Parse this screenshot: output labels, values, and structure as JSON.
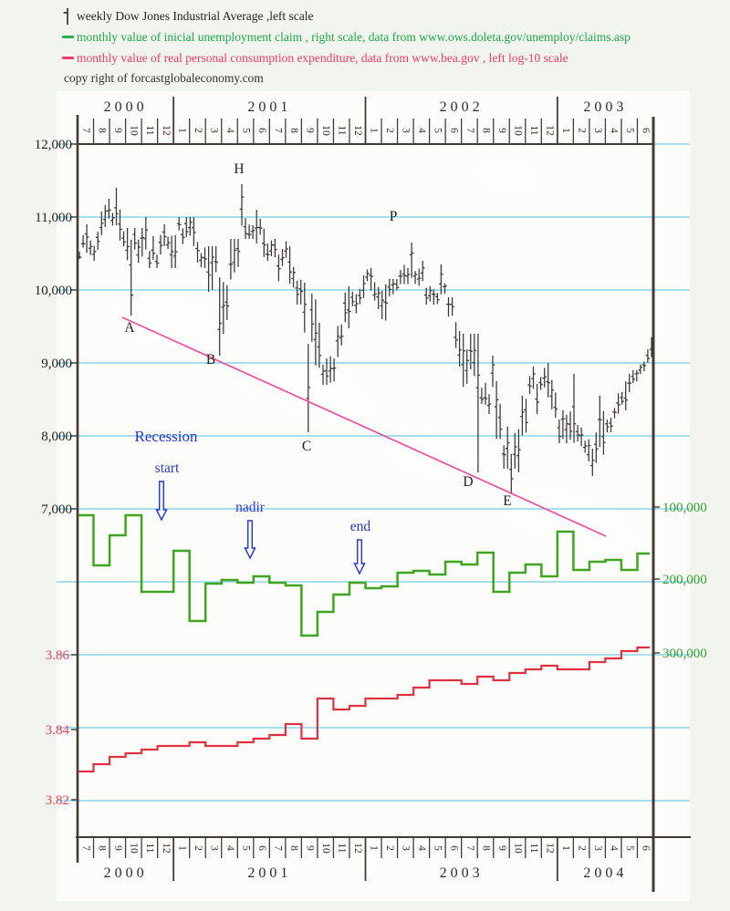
{
  "legend": {
    "items": [
      {
        "label": "weekly Dow Jones Industrial Average ,left scale",
        "color": "#3c3531",
        "marker": "hlc-bar"
      },
      {
        "label": "monthly value of inicial unemployment claim , right scale, data from www.ows.doleta.gov/unemploy/claims.asp",
        "color": "#1ea74a",
        "marker": "dash"
      },
      {
        "label": "monthly value of real personal consumption expenditure, data from www.bea.gov , left log-10 scale",
        "color": "#ee3a66",
        "marker": "dash"
      }
    ],
    "copyright": "copy right of forcastglobaleconomy.com"
  },
  "axes": {
    "top_years": [
      "2000",
      "2001",
      "2002",
      "2003"
    ],
    "bottom_years": [
      "2000",
      "2001",
      "2003",
      "2004"
    ],
    "month_ticks": [
      "7",
      "8",
      "9",
      "10",
      "11",
      "12",
      "1",
      "2",
      "3",
      "4",
      "5",
      "6",
      "7",
      "8",
      "9",
      "10",
      "11",
      "12",
      "1",
      "2",
      "3",
      "4",
      "5",
      "6",
      "7",
      "8",
      "9",
      "10",
      "11",
      "12",
      "1",
      "2",
      "3",
      "4",
      "5",
      "6"
    ],
    "left_djia_labels": [
      "12,000",
      "11,000",
      "10,000",
      "9,000",
      "8,000",
      "7,000"
    ],
    "left_pce_labels": [
      "3.86",
      "3.84",
      "3.82"
    ],
    "right_claims_labels": [
      "100,000",
      "200,000",
      "300,000"
    ]
  },
  "annotations": {
    "recession_label": "Recession",
    "event_arrows": [
      "start",
      "nadir",
      "end"
    ],
    "point_labels": [
      "A",
      "B",
      "C",
      "D",
      "E",
      "H",
      "P"
    ]
  },
  "colors": {
    "djia": "#3c3531",
    "claims": "#3fa51e",
    "pce": "#e03240",
    "trendline": "#ee4f9e",
    "annotation_blue": "#2738c6",
    "grid_strong": "#5ac5e0",
    "axis_frame": "#453a31"
  },
  "chart_data": [
    {
      "type": "bar",
      "subtype": "weekly-high-low-bars",
      "name": "weekly Dow Jones Industrial Average",
      "axis": "left",
      "ylim": [
        7000,
        12000
      ],
      "categories": [
        "2000-07",
        "2000-08",
        "2000-09",
        "2000-10",
        "2000-11",
        "2000-12",
        "2001-01",
        "2001-02",
        "2001-03",
        "2001-04",
        "2001-05",
        "2001-06",
        "2001-07",
        "2001-08",
        "2001-09",
        "2001-10",
        "2001-11",
        "2001-12",
        "2002-01",
        "2002-02",
        "2002-03",
        "2002-04",
        "2002-05",
        "2002-06",
        "2002-07",
        "2002-08",
        "2002-09",
        "2002-10",
        "2002-11",
        "2002-12",
        "2003-01",
        "2003-02",
        "2003-03",
        "2003-04",
        "2003-05",
        "2003-06"
      ],
      "monthly_high": [
        10900,
        11250,
        11400,
        10850,
        11000,
        10900,
        11000,
        11000,
        10600,
        10700,
        11450,
        11100,
        10700,
        10600,
        10100,
        9550,
        10050,
        10200,
        10300,
        10150,
        10650,
        10400,
        10350,
        9900,
        9400,
        9100,
        8750,
        8550,
        8950,
        9000,
        8850,
        8150,
        8550,
        8600,
        8900,
        9350
      ],
      "monthly_low": [
        10400,
        10550,
        10600,
        9650,
        10300,
        10300,
        10300,
        10300,
        9100,
        9400,
        10700,
        10400,
        10120,
        9800,
        8050,
        8700,
        9080,
        9680,
        9600,
        9580,
        10080,
        9800,
        9800,
        8950,
        7500,
        8300,
        7550,
        7200,
        8300,
        8250,
        7900,
        7650,
        7450,
        8050,
        8350,
        8850
      ],
      "monthly_close": [
        10600,
        11200,
        10650,
        10700,
        10400,
        10780,
        10880,
        10500,
        9880,
        10730,
        10920,
        10500,
        10520,
        9950,
        8850,
        9080,
        9850,
        10020,
        9920,
        10100,
        10400,
        9950,
        9920,
        9240,
        8700,
        8650,
        7600,
        8400,
        8900,
        8350,
        8050,
        7900,
        8000,
        8500,
        8850,
        9050
      ],
      "marked_points": {
        "A": "2000-10 low ~9650",
        "B": "2001-03 low ~9100",
        "H": "2001-05 high ~11450",
        "C": "2001-09 low ~8050",
        "P": "2002-03 high ~10650",
        "D": "2002-07 low ~7500",
        "E": "2002-10 low ~7200"
      }
    },
    {
      "type": "line",
      "subtype": "step",
      "name": "monthly value of inicial unemployment claim",
      "axis": "right (increases downward)",
      "axis_ticks": [
        100000,
        200000,
        300000
      ],
      "categories": "same as series 0",
      "values": [
        112500,
        181250,
        140000,
        112500,
        217500,
        217500,
        161250,
        257500,
        206250,
        201250,
        205000,
        196250,
        205000,
        208750,
        277500,
        245000,
        221250,
        205000,
        212500,
        210000,
        191250,
        188750,
        193750,
        176250,
        180000,
        163750,
        217500,
        191250,
        180000,
        196250,
        135000,
        187500,
        176250,
        173750,
        187500,
        165000
      ]
    },
    {
      "type": "line",
      "subtype": "step",
      "name": "monthly value of real personal consumption expenditure (log-10)",
      "axis": "left log-10",
      "axis_ticks": [
        3.86,
        3.84,
        3.82
      ],
      "categories": "same as series 0",
      "values": [
        3.828,
        3.83,
        3.832,
        3.833,
        3.834,
        3.835,
        3.835,
        3.836,
        3.835,
        3.835,
        3.836,
        3.837,
        3.838,
        3.841,
        3.837,
        3.848,
        3.845,
        3.846,
        3.848,
        3.848,
        3.849,
        3.851,
        3.853,
        3.853,
        3.852,
        3.854,
        3.853,
        3.855,
        3.856,
        3.857,
        3.856,
        3.856,
        3.858,
        3.859,
        3.861,
        3.862
      ]
    },
    {
      "type": "line",
      "subtype": "trendline",
      "name": "downtrend line A-E",
      "color": "#ee4f9e",
      "from_value": 9610,
      "to_value": 6620
    }
  ]
}
